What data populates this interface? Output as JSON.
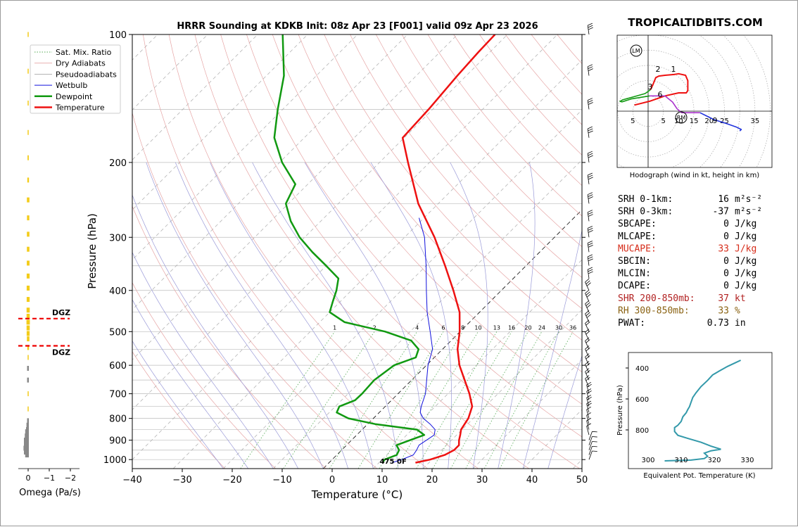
{
  "brand": "TROPICALTIDBITS.COM",
  "title": "HRRR Sounding at KDKB Init: 08z Apr 23 [F001] valid 09z Apr 23 2026",
  "colors": {
    "temperature": "#ee1111",
    "dewpoint": "#119911",
    "wetbulb": "#1111dd",
    "theta_e": "#3399aa",
    "hodo_low": "#ee1111",
    "hodo_mid": "#119911",
    "hodo_high": "#aa33cc",
    "hodo_top": "#2233dd",
    "dgz": "#ee0000",
    "omega_up": "#f3cc1a",
    "omega_down": "#888888"
  },
  "chart_data": [
    {
      "type": "line",
      "name": "skew-t",
      "title": "HRRR Sounding at KDKB Init: 08z Apr 23 [F001] valid 09z Apr 23 2026",
      "xlabel": "Temperature (°C)",
      "ylabel": "Pressure (hPa)",
      "xlim": [
        -40,
        50
      ],
      "ylim": [
        1050,
        100
      ],
      "y_scale": "log",
      "x_ticks": [
        "−40",
        "−30",
        "−20",
        "−10",
        "0",
        "10",
        "20",
        "30",
        "40",
        "50"
      ],
      "y_ticks": [
        "100",
        "200",
        "300",
        "400",
        "500",
        "600",
        "700",
        "800",
        "900",
        "1000"
      ],
      "legend": {
        "placement": "top-left",
        "entries": [
          "Sat. Mix. Ratio",
          "Dry Adiabats",
          "Pseudoadiabats",
          "Wetbulb",
          "Dewpoint",
          "Temperature"
        ]
      },
      "mixing_ratio_labels": [
        "1",
        "2",
        "4",
        "6",
        "8",
        "10",
        "13",
        "16",
        "20",
        "24",
        "30",
        "36"
      ],
      "freezing_level_label": "4750F",
      "series": [
        {
          "name": "Temperature",
          "points": [
            [
              1017,
              17.3
            ],
            [
              1000,
              19.6
            ],
            [
              975,
              21.6
            ],
            [
              950,
              22.5
            ],
            [
              925,
              22.5
            ],
            [
              900,
              21.5
            ],
            [
              875,
              20.7
            ],
            [
              850,
              19.8
            ],
            [
              800,
              19.0
            ],
            [
              750,
              17.4
            ],
            [
              700,
              14.3
            ],
            [
              650,
              10.6
            ],
            [
              600,
              6.6
            ],
            [
              550,
              3.0
            ],
            [
              500,
              -0.1
            ],
            [
              450,
              -4.0
            ],
            [
              400,
              -9.6
            ],
            [
              350,
              -16.2
            ],
            [
              300,
              -24.0
            ],
            [
              250,
              -34.0
            ],
            [
              200,
              -44.3
            ],
            [
              175,
              -50.3
            ],
            [
              150,
              -50.8
            ],
            [
              125,
              -51.8
            ],
            [
              110,
              -52.3
            ],
            [
              100,
              -52.5
            ]
          ]
        },
        {
          "name": "Dewpoint",
          "points": [
            [
              1017,
              10.7
            ],
            [
              1000,
              10.5
            ],
            [
              975,
              12.0
            ],
            [
              950,
              11.5
            ],
            [
              925,
              10.0
            ],
            [
              900,
              11.7
            ],
            [
              875,
              13.5
            ],
            [
              850,
              11.0
            ],
            [
              825,
              1.5
            ],
            [
              800,
              -5.0
            ],
            [
              775,
              -8.5
            ],
            [
              750,
              -9.2
            ],
            [
              725,
              -7.3
            ],
            [
              700,
              -7.2
            ],
            [
              650,
              -7.5
            ],
            [
              600,
              -6.5
            ],
            [
              575,
              -3.7
            ],
            [
              550,
              -4.8
            ],
            [
              525,
              -8.0
            ],
            [
              500,
              -15.0
            ],
            [
              475,
              -25.0
            ],
            [
              450,
              -30.0
            ],
            [
              425,
              -31.5
            ],
            [
              400,
              -33.0
            ],
            [
              375,
              -35.0
            ],
            [
              350,
              -40.0
            ],
            [
              325,
              -45.5
            ],
            [
              300,
              -51.0
            ],
            [
              275,
              -56.0
            ],
            [
              250,
              -60.5
            ],
            [
              225,
              -62.5
            ],
            [
              200,
              -69.5
            ],
            [
              175,
              -76.0
            ],
            [
              150,
              -81.0
            ],
            [
              125,
              -86.5
            ],
            [
              100,
              -95.0
            ]
          ]
        },
        {
          "name": "Wetbulb",
          "points": [
            [
              1017,
              12.6
            ],
            [
              1000,
              13.9
            ],
            [
              975,
              15.3
            ],
            [
              950,
              15.0
            ],
            [
              925,
              14.5
            ],
            [
              900,
              15.0
            ],
            [
              875,
              15.5
            ],
            [
              850,
              14.6
            ],
            [
              825,
              12.5
            ],
            [
              800,
              10.0
            ],
            [
              775,
              8.2
            ],
            [
              750,
              7.2
            ],
            [
              700,
              5.5
            ],
            [
              650,
              3.0
            ],
            [
              600,
              0.3
            ],
            [
              550,
              -2.0
            ],
            [
              500,
              -6.0
            ],
            [
              450,
              -10.5
            ],
            [
              400,
              -15.0
            ],
            [
              350,
              -20.0
            ],
            [
              300,
              -26.0
            ],
            [
              270,
              -31.0
            ]
          ]
        }
      ]
    },
    {
      "type": "line",
      "name": "hodograph",
      "title": "Hodograph (wind in kt, height in km)",
      "ring_labels": [
        "5",
        "5",
        "10",
        "15",
        "20",
        "25",
        "35"
      ],
      "height_labels": [
        "1",
        "2",
        "3",
        "6",
        "9"
      ],
      "markers": [
        "LM",
        "RM"
      ],
      "series": [
        {
          "name": "0-3 km",
          "points": [
            [
              -9,
              4
            ],
            [
              -5,
              5
            ],
            [
              1,
              6.5
            ],
            [
              11,
              10
            ],
            [
              20,
              12
            ],
            [
              25,
              12
            ],
            [
              26,
              13.5
            ],
            [
              26,
              20
            ],
            [
              24.5,
              23.5
            ],
            [
              20,
              24.5
            ],
            [
              17,
              24
            ],
            [
              11,
              23.5
            ],
            [
              7,
              23
            ],
            [
              5,
              22
            ],
            [
              3,
              17
            ],
            [
              1.5,
              14
            ]
          ]
        },
        {
          "name": "3-6 km",
          "points": [
            [
              1.5,
              14
            ],
            [
              -2,
              11.5
            ],
            [
              -11,
              9
            ],
            [
              -16.7,
              7.4
            ],
            [
              -18.4,
              6.4
            ],
            [
              -17,
              6.1
            ],
            [
              -11,
              8
            ],
            [
              1,
              10
            ]
          ]
        },
        {
          "name": "6-9 km",
          "points": [
            [
              1,
              10
            ],
            [
              11,
              10
            ],
            [
              16,
              6
            ],
            [
              19,
              1.5
            ],
            [
              22,
              -1
            ],
            [
              29.5,
              -1
            ],
            [
              34,
              -1
            ]
          ]
        },
        {
          "name": "9+ km",
          "points": [
            [
              34,
              -1
            ],
            [
              38,
              -3
            ],
            [
              43,
              -5.5
            ],
            [
              51,
              -8
            ],
            [
              58,
              -10.5
            ],
            [
              61,
              -12
            ],
            [
              60,
              -13
            ]
          ]
        }
      ]
    },
    {
      "type": "line",
      "name": "theta-e",
      "xlabel": "Equivalent Pot. Temperature (K)",
      "ylabel": "Pressure (hPa)",
      "x_ticks": [
        "300",
        "310",
        "320",
        "330"
      ],
      "y_ticks": [
        "400",
        "600",
        "800"
      ],
      "points": [
        [
          305,
          1000
        ],
        [
          313,
          995
        ],
        [
          317,
          985
        ],
        [
          318,
          970
        ],
        [
          317,
          950
        ],
        [
          319,
          935
        ],
        [
          322,
          925
        ],
        [
          319,
          905
        ],
        [
          316,
          880
        ],
        [
          312,
          855
        ],
        [
          309,
          835
        ],
        [
          308,
          810
        ],
        [
          308,
          785
        ],
        [
          309,
          770
        ],
        [
          310,
          745
        ],
        [
          310.5,
          715
        ],
        [
          311.5,
          690
        ],
        [
          312,
          668
        ],
        [
          312.5,
          650
        ],
        [
          313,
          620
        ],
        [
          313.5,
          590
        ],
        [
          314.5,
          560
        ],
        [
          316,
          520
        ],
        [
          318,
          480
        ],
        [
          319.5,
          445
        ],
        [
          321.5,
          420
        ],
        [
          324,
          390
        ],
        [
          326.5,
          365
        ],
        [
          328,
          350
        ]
      ]
    },
    {
      "type": "bar",
      "name": "omega",
      "xlabel": "Omega (Pa/s)",
      "x_ticks": [
        "0",
        "−1",
        "−2"
      ],
      "dgz_label": "DGZ",
      "dgz_pressures": [
        466,
        540
      ],
      "points": [
        [
          100,
          -0.02
        ],
        [
          122,
          -0.03
        ],
        [
          145,
          -0.04
        ],
        [
          170,
          -0.05
        ],
        [
          195,
          -0.06
        ],
        [
          220,
          -0.08
        ],
        [
          245,
          -0.12
        ],
        [
          270,
          -0.11
        ],
        [
          295,
          -0.12
        ],
        [
          320,
          -0.12
        ],
        [
          345,
          -0.13
        ],
        [
          370,
          -0.14
        ],
        [
          395,
          -0.14
        ],
        [
          420,
          -0.14
        ],
        [
          445,
          -0.15
        ],
        [
          460,
          -0.15
        ],
        [
          475,
          -0.16
        ],
        [
          490,
          -0.15
        ],
        [
          505,
          -0.14
        ],
        [
          520,
          -0.12
        ],
        [
          545,
          -0.08
        ],
        [
          575,
          -0.04
        ],
        [
          610,
          0.02
        ],
        [
          650,
          0.05
        ],
        [
          700,
          -0.01
        ],
        [
          760,
          -0.02
        ],
        [
          810,
          0.04
        ],
        [
          830,
          0.08
        ],
        [
          850,
          0.1
        ],
        [
          860,
          0.14
        ],
        [
          880,
          0.16
        ],
        [
          900,
          0.2
        ],
        [
          920,
          0.2
        ],
        [
          940,
          0.22
        ],
        [
          960,
          0.2
        ],
        [
          975,
          0.14
        ]
      ]
    },
    {
      "type": "table",
      "name": "indices",
      "rows": [
        {
          "label": "SRH 0-1km:",
          "value": "16",
          "unit": "m²s⁻²",
          "color": "#000000"
        },
        {
          "label": "SRH 0-3km:",
          "value": "-37",
          "unit": "m²s⁻²",
          "color": "#000000"
        },
        {
          "label": "SBCAPE:",
          "value": "0",
          "unit": "J/kg",
          "color": "#000000"
        },
        {
          "label": "MLCAPE:",
          "value": "0",
          "unit": "J/kg",
          "color": "#000000"
        },
        {
          "label": "MUCAPE:",
          "value": "33",
          "unit": "J/kg",
          "color": "#d62c1a"
        },
        {
          "label": "SBCIN:",
          "value": "0",
          "unit": "J/kg",
          "color": "#000000"
        },
        {
          "label": "MLCIN:",
          "value": "0",
          "unit": "J/kg",
          "color": "#000000"
        },
        {
          "label": "DCAPE:",
          "value": "0",
          "unit": "J/kg",
          "color": "#000000"
        },
        {
          "label": "SHR 200-850mb:",
          "value": "37",
          "unit": "kt",
          "color": "#b22222"
        },
        {
          "label": "RH 300-850mb:",
          "value": "33",
          "unit": "%",
          "color": "#8a6212"
        },
        {
          "label": "PWAT:",
          "value": "0.73",
          "unit": "in",
          "color": "#000000"
        }
      ]
    }
  ]
}
